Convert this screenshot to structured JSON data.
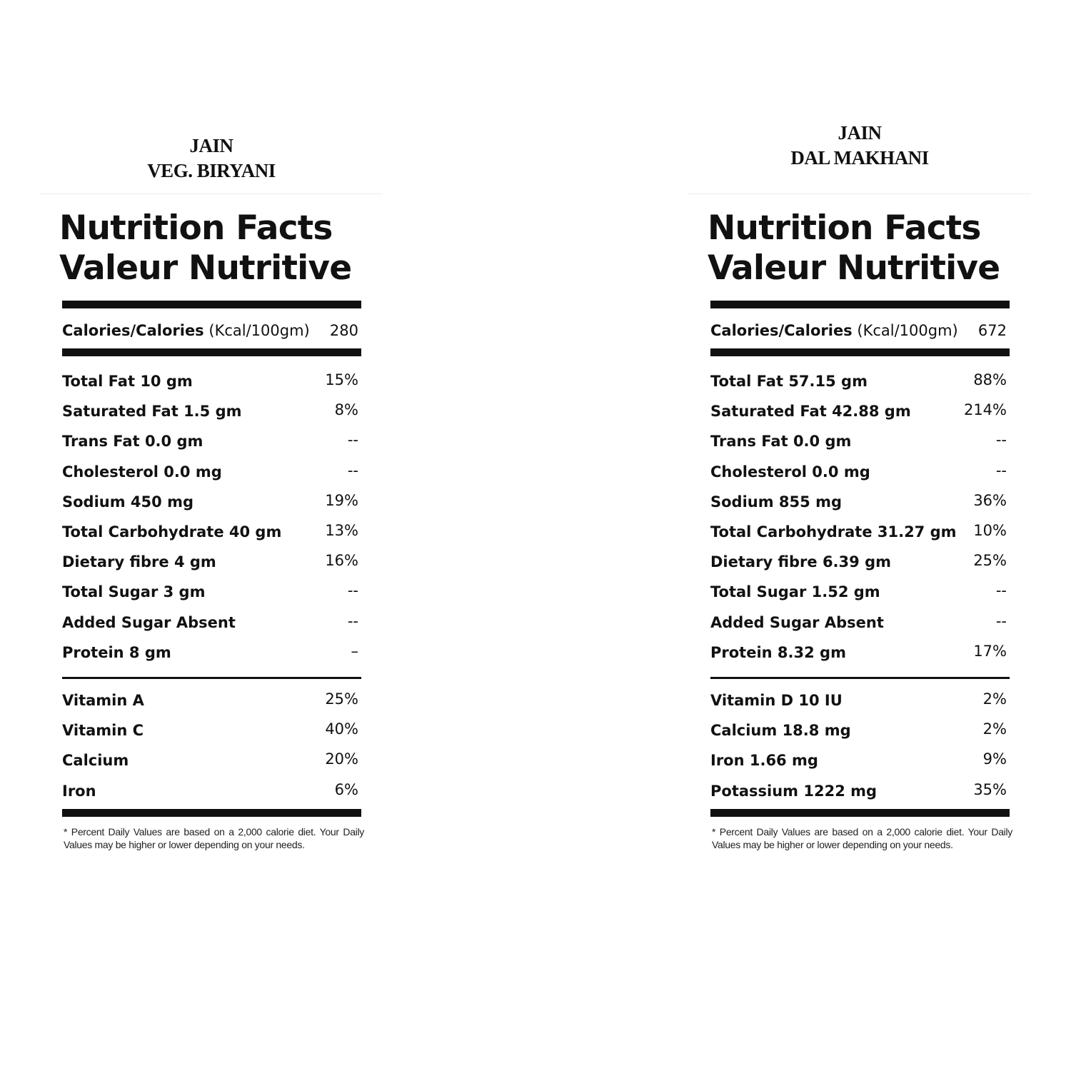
{
  "left": {
    "product_title": [
      "JAIN",
      "VEG. BIRYANI"
    ],
    "heading_line1": "Nutrition Facts",
    "heading_line2": "Valeur Nutritive",
    "calories_label": "Calories/Calories",
    "calories_unit": "(Kcal/100gm)",
    "calories_value": "280",
    "nutrients": [
      {
        "label": "Total Fat 10 gm",
        "value": "15%"
      },
      {
        "label": "Saturated Fat 1.5 gm",
        "value": "8%"
      },
      {
        "label": "Trans Fat 0.0 gm",
        "value": "--"
      },
      {
        "label": "Cholesterol 0.0 mg",
        "value": "--"
      },
      {
        "label": "Sodium 450 mg",
        "value": "19%"
      },
      {
        "label": "Total Carbohydrate 40 gm",
        "value": "13%"
      },
      {
        "label": "Dietary fibre 4 gm",
        "value": "16%"
      },
      {
        "label": "Total Sugar 3 gm",
        "value": "--"
      },
      {
        "label": "Added Sugar Absent",
        "value": "--"
      },
      {
        "label": "Protein 8 gm",
        "value": "–"
      }
    ],
    "vitamins": [
      {
        "label": "Vitamin A",
        "value": "25%"
      },
      {
        "label": "Vitamin C",
        "value": "40%"
      },
      {
        "label": "Calcium",
        "value": "20%"
      },
      {
        "label": "Iron",
        "value": "6%"
      }
    ],
    "footnote": "* Percent Daily Values are based on a 2,000 calorie diet. Your Daily Values may be higher or lower depending on your needs."
  },
  "right": {
    "product_title": [
      "JAIN",
      "DAL MAKHANI"
    ],
    "heading_line1": "Nutrition Facts",
    "heading_line2": "Valeur Nutritive",
    "calories_label": "Calories/Calories",
    "calories_unit": "(Kcal/100gm)",
    "calories_value": "672",
    "nutrients": [
      {
        "label": "Total Fat 57.15 gm",
        "value": "88%"
      },
      {
        "label": "Saturated Fat 42.88 gm",
        "value": "214%"
      },
      {
        "label": "Trans Fat 0.0 gm",
        "value": "--"
      },
      {
        "label": "Cholesterol 0.0 mg",
        "value": "--"
      },
      {
        "label": "Sodium 855 mg",
        "value": "36%"
      },
      {
        "label": "Total Carbohydrate 31.27 gm",
        "value": "10%"
      },
      {
        "label": "Dietary fibre 6.39 gm",
        "value": "25%"
      },
      {
        "label": "Total Sugar 1.52 gm",
        "value": "--"
      },
      {
        "label": "Added Sugar Absent",
        "value": "--"
      },
      {
        "label": "Protein 8.32 gm",
        "value": "17%"
      }
    ],
    "vitamins": [
      {
        "label": "Vitamin D 10 IU",
        "value": "2%"
      },
      {
        "label": "Calcium 18.8 mg",
        "value": "2%"
      },
      {
        "label": "Iron 1.66 mg",
        "value": "9%"
      },
      {
        "label": "Potassium 1222 mg",
        "value": "35%"
      }
    ],
    "footnote": "* Percent Daily Values are based on a 2,000 calorie diet. Your Daily Values may be higher or lower depending on your needs."
  }
}
